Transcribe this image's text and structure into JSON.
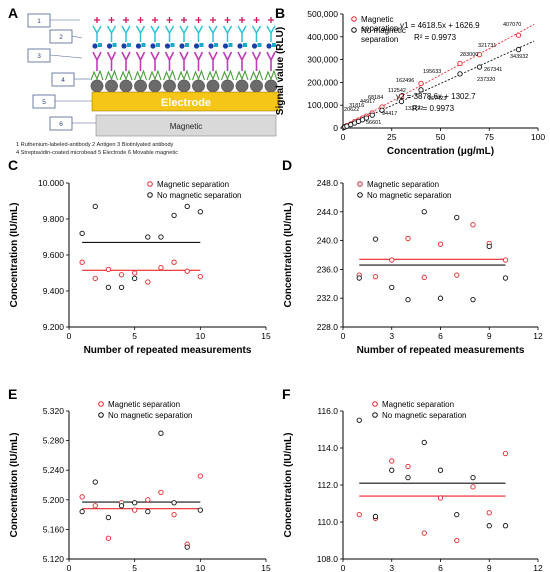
{
  "colors": {
    "magnetic": "#e8262b",
    "no_magnetic": "#111111",
    "electrode": "#f5c518",
    "magnet_block": "#d9d9d9",
    "box_stroke": "#4a5f91"
  },
  "schematic": {
    "panel_label": "A",
    "box_numbers": [
      "1",
      "2",
      "3",
      "4",
      "5",
      "6"
    ],
    "electrode_label": "Electrode",
    "magnetic_label": "Magnetic",
    "caption_line1": "1 Ruthenium-labeled-antibody  2 Antigen  3 Biotinlyated antibody",
    "caption_line2": "4 Streptavidin-coated microbead 5 Electrode  6 Movable magnetic"
  },
  "chart_data": [
    {
      "panel": "B",
      "type": "scatter",
      "xlabel": "Concentration (μg/mL)",
      "ylabel": "Signal value (RLU)",
      "xlim": [
        0,
        100
      ],
      "ylim": [
        0,
        500000
      ],
      "xticks": [
        0,
        25,
        50,
        75,
        100
      ],
      "yticks": [
        0,
        100000,
        200000,
        300000,
        400000,
        500000
      ],
      "ytick_labels": [
        "0",
        "100,000",
        "200,000",
        "300,000",
        "400,000",
        "500,000"
      ],
      "legend": [
        "Magnetic separation",
        "No magnetic separation"
      ],
      "legend_position": "top-left",
      "grid": false,
      "series": [
        {
          "name": "Magnetic separation",
          "color": "#e8262b",
          "x": [
            0.5,
            1,
            2,
            4,
            6,
            8,
            10,
            12,
            15,
            20,
            30,
            40,
            60,
            70,
            90
          ],
          "y": [
            3000,
            6500,
            10500,
            18000,
            28000,
            35000,
            44000,
            52000,
            66000,
            92000,
            140000,
            195633,
            283000,
            321731,
            407070
          ],
          "fit_equation": "y1 = 4618.5x + 1626.9",
          "r_squared": "R² = 0.9973",
          "slope": 4618.5,
          "intercept": 1626.9
        },
        {
          "name": "No magnetic separation",
          "color": "#111111",
          "x": [
            0.5,
            1,
            2,
            4,
            6,
            8,
            10,
            12,
            15,
            20,
            30,
            40,
            60,
            70,
            90
          ],
          "y": [
            2500,
            5000,
            8000,
            15000,
            22000,
            29000,
            36000,
            44000,
            56601,
            78000,
            116000,
            167423,
            237320,
            267341,
            343932
          ],
          "fit_equation": "y2 = 3878.6x + 1302.7",
          "r_squared": "R² = 0.9973",
          "slope": 3878.6,
          "intercept": 1302.7
        }
      ],
      "annotations": [
        "407070",
        "321731",
        "283000",
        "195633",
        "162496",
        "112542",
        "68184",
        "44917",
        "31816",
        "20622",
        "343932",
        "267341",
        "237320",
        "167423",
        "133122",
        "94417",
        "56601"
      ]
    },
    {
      "panel": "C",
      "type": "scatter",
      "xlabel": "Number of repeated measurements",
      "ylabel": "Concentration (IU/mL)",
      "xlim": [
        0,
        15
      ],
      "ylim": [
        9.2,
        10.0
      ],
      "xticks": [
        0,
        5,
        10,
        15
      ],
      "xtick_labels": [
        "0",
        "5",
        "10",
        "15"
      ],
      "yticks": [
        9.2,
        9.4,
        9.6,
        9.8,
        10.0
      ],
      "ytick_labels": [
        "9.200",
        "9.400",
        "9.600",
        "9.800",
        "10.000"
      ],
      "legend": [
        "Magnetic separation",
        "No magnetic separation"
      ],
      "legend_position": "top-center",
      "series": [
        {
          "name": "Magnetic separation",
          "color": "#e8262b",
          "x": [
            1,
            2,
            3,
            4,
            5,
            6,
            7,
            8,
            9,
            10
          ],
          "y": [
            9.56,
            9.47,
            9.52,
            9.49,
            9.5,
            9.45,
            9.53,
            9.56,
            9.51,
            9.48
          ],
          "mean": 9.515
        },
        {
          "name": "No magnetic separation",
          "color": "#111111",
          "x": [
            1,
            2,
            3,
            4,
            5,
            6,
            7,
            8,
            9,
            10
          ],
          "y": [
            9.72,
            9.87,
            9.42,
            9.42,
            9.47,
            9.7,
            9.7,
            9.82,
            9.87,
            9.84
          ],
          "mean": 9.67
        }
      ]
    },
    {
      "panel": "D",
      "type": "scatter",
      "xlabel": "Number of repeated measurements",
      "ylabel": "Concentration (IU/mL)",
      "xlim": [
        0,
        12
      ],
      "ylim": [
        228.0,
        248.0
      ],
      "xticks": [
        0,
        3,
        6,
        9,
        12
      ],
      "xtick_labels": [
        "0",
        "3",
        "6",
        "9",
        "12"
      ],
      "yticks": [
        228,
        232,
        236,
        240,
        244,
        248
      ],
      "ytick_labels": [
        "228.0",
        "232.0",
        "236.0",
        "240.0",
        "244.0",
        "248.0"
      ],
      "legend": [
        "Magnetic separation",
        "No magnetic separation"
      ],
      "legend_position": "top-center",
      "series": [
        {
          "name": "Magnetic separation",
          "color": "#e8262b",
          "x": [
            1,
            2,
            3,
            4,
            5,
            6,
            7,
            8,
            9,
            10
          ],
          "y": [
            235.2,
            235.0,
            237.3,
            240.3,
            234.9,
            239.5,
            235.2,
            242.2,
            239.6,
            237.3
          ],
          "mean": 237.4
        },
        {
          "name": "No magnetic separation",
          "color": "#111111",
          "x": [
            1,
            2,
            3,
            4,
            5,
            6,
            7,
            8,
            9,
            10
          ],
          "y": [
            234.8,
            240.2,
            233.5,
            231.8,
            244.0,
            232.0,
            243.2,
            231.8,
            239.2,
            234.8
          ],
          "mean": 236.6
        }
      ]
    },
    {
      "panel": "E",
      "type": "scatter",
      "xlabel": "Number of repeated measurements",
      "ylabel": "Concentration (IU/mL)",
      "xlim": [
        0,
        15
      ],
      "ylim": [
        5.12,
        5.32
      ],
      "xticks": [
        0,
        5,
        10,
        15
      ],
      "xtick_labels": [
        "0",
        "5",
        "10",
        "15"
      ],
      "yticks": [
        5.12,
        5.16,
        5.2,
        5.24,
        5.28,
        5.32
      ],
      "ytick_labels": [
        "5.120",
        "5.160",
        "5.200",
        "5.240",
        "5.280",
        "5.320"
      ],
      "legend": [
        "Magnetic separation",
        "No magnetic separation"
      ],
      "legend_position": "top-center",
      "series": [
        {
          "name": "Magnetic separation",
          "color": "#e8262b",
          "x": [
            1,
            2,
            3,
            4,
            5,
            6,
            7,
            8,
            9,
            10
          ],
          "y": [
            5.204,
            5.192,
            5.148,
            5.196,
            5.186,
            5.2,
            5.21,
            5.18,
            5.14,
            5.232
          ],
          "mean": 5.188
        },
        {
          "name": "No magnetic separation",
          "color": "#111111",
          "x": [
            1,
            2,
            3,
            4,
            5,
            6,
            7,
            8,
            9,
            10
          ],
          "y": [
            5.184,
            5.224,
            5.176,
            5.192,
            5.196,
            5.184,
            5.29,
            5.196,
            5.136,
            5.186
          ],
          "mean": 5.197
        }
      ]
    },
    {
      "panel": "F",
      "type": "scatter",
      "xlabel": "Number of repeated measurements",
      "ylabel": "Concentration (IU/mL)",
      "xlim": [
        0,
        12
      ],
      "ylim": [
        108.0,
        116.0
      ],
      "xticks": [
        0,
        3,
        6,
        9,
        12
      ],
      "xtick_labels": [
        "0",
        "3",
        "6",
        "9",
        "12"
      ],
      "yticks": [
        108,
        110,
        112,
        114,
        116
      ],
      "ytick_labels": [
        "108.0",
        "110.0",
        "112.0",
        "114.0",
        "116.0"
      ],
      "legend": [
        "Magnetic separation",
        "No magnetic separation"
      ],
      "legend_position": "top-center",
      "series": [
        {
          "name": "Magnetic separation",
          "color": "#e8262b",
          "x": [
            1,
            2,
            3,
            4,
            5,
            6,
            7,
            8,
            9,
            10
          ],
          "y": [
            110.4,
            110.2,
            113.3,
            113.0,
            109.4,
            111.3,
            109.0,
            111.9,
            110.5,
            113.7
          ],
          "mean": 111.4
        },
        {
          "name": "No magnetic separation",
          "color": "#111111",
          "x": [
            1,
            2,
            3,
            4,
            5,
            6,
            7,
            8,
            9,
            10
          ],
          "y": [
            115.5,
            110.3,
            112.8,
            112.4,
            114.3,
            112.8,
            110.4,
            112.4,
            109.8,
            109.8
          ],
          "mean": 112.1
        }
      ]
    }
  ]
}
